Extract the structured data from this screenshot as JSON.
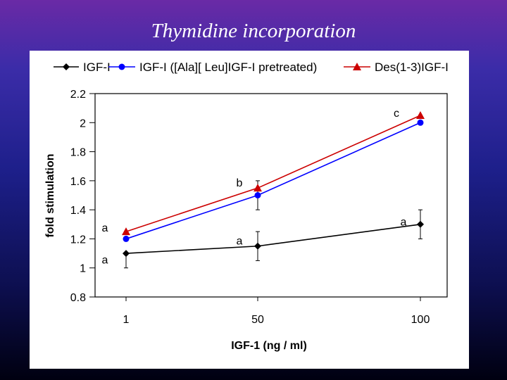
{
  "slide": {
    "title": "Thymidine incorporation"
  },
  "chart_data": {
    "type": "line",
    "x": [
      1,
      50,
      100
    ],
    "x_tick_labels": [
      "1",
      "50",
      "100"
    ],
    "xlabel": "IGF-1 (ng / ml)",
    "ylabel": "fold stimulation",
    "ylim": [
      0.8,
      2.2
    ],
    "y_ticks": [
      0.8,
      1,
      1.2,
      1.4,
      1.6,
      1.8,
      2,
      2.2
    ],
    "y_tick_labels": [
      "0.8",
      "1",
      "1.2",
      "1.4",
      "1.6",
      "1.8",
      "2",
      "2.2"
    ],
    "grid": false,
    "legend_position": "top",
    "series": [
      {
        "name": "IGF-I",
        "values": [
          1.1,
          1.15,
          1.3
        ],
        "color": "#000000",
        "marker": "diamond",
        "error": [
          [
            1.0,
            1.1
          ],
          [
            1.05,
            1.25
          ],
          [
            1.2,
            1.4
          ]
        ]
      },
      {
        "name": "IGF-I ([Ala][ Leu]IGF-I pretreated)",
        "values": [
          1.2,
          1.5,
          2.0
        ],
        "color": "#0000ff",
        "marker": "circle",
        "error": [
          null,
          [
            1.4,
            1.6
          ],
          null
        ]
      },
      {
        "name": "Des(1-3)IGF-I",
        "values": [
          1.25,
          1.55,
          2.05
        ],
        "color": "#cc0000",
        "marker": "triangle",
        "error": [
          null,
          null,
          null
        ]
      }
    ],
    "annotations": [
      {
        "text": "a",
        "x": 1,
        "y": 1.28
      },
      {
        "text": "a",
        "x": 1,
        "y": 1.06
      },
      {
        "text": "a",
        "x": 50,
        "y": 1.19
      },
      {
        "text": "b",
        "x": 50,
        "y": 1.59
      },
      {
        "text": "a",
        "x": 100,
        "y": 1.32
      },
      {
        "text": "c",
        "x": 100,
        "y": 2.07
      }
    ]
  }
}
